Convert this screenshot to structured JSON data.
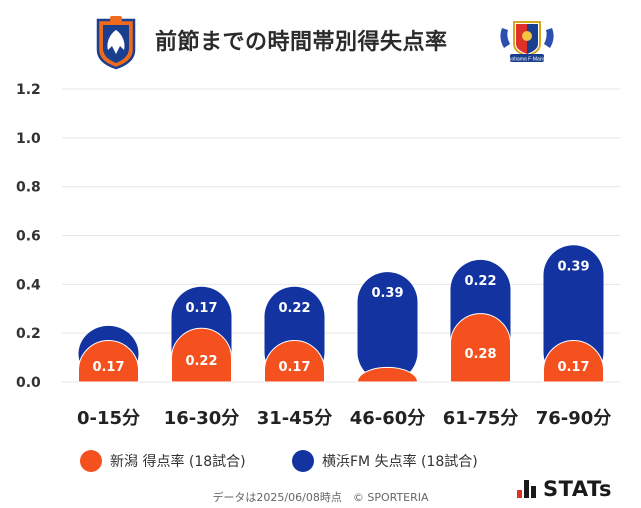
{
  "title": "前節までの時間帯別得失点率",
  "colors": {
    "niigata": "#f4511e",
    "yokohama": "#1233a0",
    "grid": "#e6e6e6"
  },
  "chart_data": {
    "type": "bar",
    "title": "前節までの時間帯別得失点率",
    "categories": [
      "0-15分",
      "16-30分",
      "31-45分",
      "46-60分",
      "61-75分",
      "76-90分"
    ],
    "series": [
      {
        "name": "新潟 得点率 (18試合)",
        "values": [
          0.17,
          0.22,
          0.17,
          0.06,
          0.28,
          0.17
        ],
        "labels": [
          "0.17",
          "0.22",
          "0.17",
          "",
          "0.28",
          "0.17"
        ]
      },
      {
        "name": "横浜FM 失点率 (18試合)",
        "values": [
          0.06,
          0.17,
          0.22,
          0.39,
          0.22,
          0.39
        ],
        "labels": [
          "",
          "0.17",
          "0.22",
          "0.39",
          "0.22",
          "0.39"
        ]
      }
    ],
    "stacked": true,
    "yticks": [
      "1.2",
      "1.0",
      "0.8",
      "0.6",
      "0.4",
      "0.2",
      "0.0"
    ],
    "ylim": [
      0,
      1.2
    ],
    "grid": true,
    "legend_position": "bottom"
  },
  "legend": {
    "niigata": "新潟 得点率 (18試合)",
    "yokohama": "横浜FM 失点率 (18試合)"
  },
  "footer": "データは2025/06/08時点　© SPORTERIA",
  "brand": "STATs",
  "logos": {
    "left_crest": "albirex-niigata-crest",
    "right_crest": "yokohama-f-marinos-crest",
    "right_crest_text": "Yokohama F·Marinos"
  }
}
